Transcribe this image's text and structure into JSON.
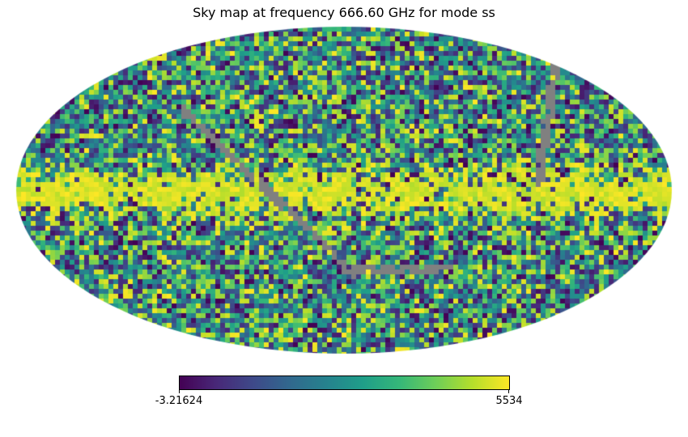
{
  "chart_data": {
    "type": "heatmap",
    "projection": "mollweide",
    "title": "Sky map at frequency 666.60 GHz for mode ss",
    "colormap": "viridis",
    "colorbar": {
      "min_label": "-3.21624",
      "max_label": "5534",
      "min": -3.21624,
      "max": 5534
    },
    "bad_value_color": "#808080",
    "features": [
      "bright galactic plane band along equator",
      "gray masked scan stripes"
    ]
  }
}
